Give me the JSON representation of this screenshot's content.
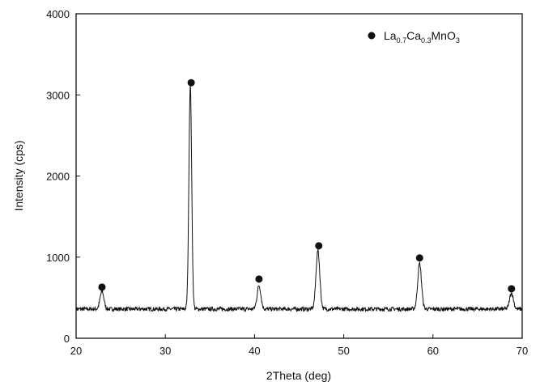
{
  "chart_data": {
    "type": "line",
    "xlabel": "2Theta (deg)",
    "ylabel": "Intensity (cps)",
    "xlim": [
      20,
      70
    ],
    "ylim": [
      0,
      4000
    ],
    "x_ticks": [
      "20",
      "30",
      "40",
      "50",
      "60",
      "70"
    ],
    "y_ticks": [
      "0",
      "1000",
      "2000",
      "3000",
      "4000"
    ],
    "grid": false,
    "legend_position": "top-right",
    "legend": {
      "marker": "filled-circle",
      "label_parts": [
        {
          "text": "La",
          "sub": false
        },
        {
          "text": "0.7",
          "sub": true
        },
        {
          "text": "Ca",
          "sub": false
        },
        {
          "text": "0.3",
          "sub": true
        },
        {
          "text": "MnO",
          "sub": false
        },
        {
          "text": "3",
          "sub": true
        }
      ]
    },
    "series": [
      {
        "baseline": 360,
        "noise": 25,
        "peaks": [
          {
            "x": 22.9,
            "y": 580
          },
          {
            "x": 32.8,
            "y": 3120
          },
          {
            "x": 40.5,
            "y": 650
          },
          {
            "x": 47.1,
            "y": 1080
          },
          {
            "x": 58.5,
            "y": 920
          },
          {
            "x": 68.8,
            "y": 560
          }
        ]
      }
    ],
    "peak_markers": [
      {
        "x": 22.9,
        "y": 630
      },
      {
        "x": 32.9,
        "y": 3150
      },
      {
        "x": 40.5,
        "y": 730
      },
      {
        "x": 47.2,
        "y": 1140
      },
      {
        "x": 58.5,
        "y": 990
      },
      {
        "x": 68.8,
        "y": 610
      }
    ],
    "colors": {
      "line": "#111111",
      "axis": "#111111",
      "marker": "#111111"
    }
  }
}
